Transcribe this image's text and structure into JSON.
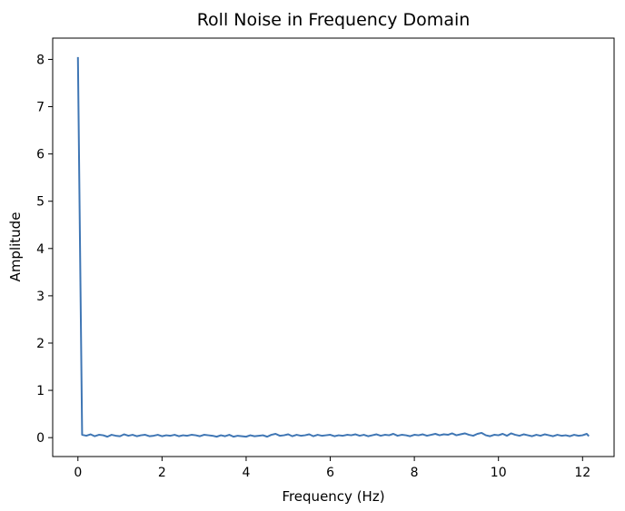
{
  "chart_data": {
    "type": "line",
    "title": "Roll Noise in Frequency Domain",
    "xlabel": "Frequency (Hz)",
    "ylabel": "Amplitude",
    "xlim": [
      -0.6,
      12.75
    ],
    "ylim": [
      -0.4,
      8.45
    ],
    "xticks": [
      0,
      2,
      4,
      6,
      8,
      10,
      12
    ],
    "yticks": [
      0,
      1,
      2,
      3,
      4,
      5,
      6,
      7,
      8
    ],
    "grid": false,
    "colors": {
      "line": "#3f76b4",
      "axes": "#000000"
    },
    "series": [
      {
        "x": [
          0,
          0.1,
          0.2,
          0.3,
          0.4,
          0.5,
          0.6,
          0.7,
          0.8,
          0.9,
          1.0,
          1.1,
          1.2,
          1.3,
          1.4,
          1.5,
          1.6,
          1.7,
          1.8,
          1.9,
          2.0,
          2.1,
          2.2,
          2.3,
          2.4,
          2.5,
          2.6,
          2.7,
          2.8,
          2.9,
          3.0,
          3.1,
          3.2,
          3.3,
          3.4,
          3.5,
          3.6,
          3.7,
          3.8,
          3.9,
          4.0,
          4.1,
          4.2,
          4.3,
          4.4,
          4.5,
          4.6,
          4.7,
          4.8,
          4.9,
          5.0,
          5.1,
          5.2,
          5.3,
          5.4,
          5.5,
          5.6,
          5.7,
          5.8,
          5.9,
          6.0,
          6.1,
          6.2,
          6.3,
          6.4,
          6.5,
          6.6,
          6.7,
          6.8,
          6.9,
          7.0,
          7.1,
          7.2,
          7.3,
          7.4,
          7.5,
          7.6,
          7.7,
          7.8,
          7.9,
          8.0,
          8.1,
          8.2,
          8.3,
          8.4,
          8.5,
          8.6,
          8.7,
          8.8,
          8.9,
          9.0,
          9.1,
          9.2,
          9.3,
          9.4,
          9.5,
          9.6,
          9.7,
          9.8,
          9.9,
          10.0,
          10.1,
          10.2,
          10.3,
          10.4,
          10.5,
          10.6,
          10.7,
          10.8,
          10.9,
          11.0,
          11.1,
          11.2,
          11.3,
          11.4,
          11.5,
          11.6,
          11.7,
          11.8,
          11.9,
          12.0,
          12.1,
          12.15
        ],
        "y": [
          8.05,
          0.06,
          0.04,
          0.07,
          0.03,
          0.06,
          0.05,
          0.02,
          0.06,
          0.04,
          0.03,
          0.07,
          0.04,
          0.06,
          0.03,
          0.05,
          0.06,
          0.03,
          0.04,
          0.06,
          0.03,
          0.05,
          0.04,
          0.06,
          0.03,
          0.05,
          0.04,
          0.06,
          0.05,
          0.03,
          0.06,
          0.05,
          0.04,
          0.02,
          0.05,
          0.03,
          0.06,
          0.02,
          0.04,
          0.03,
          0.02,
          0.05,
          0.03,
          0.04,
          0.05,
          0.02,
          0.06,
          0.08,
          0.04,
          0.05,
          0.07,
          0.03,
          0.06,
          0.04,
          0.05,
          0.07,
          0.03,
          0.06,
          0.04,
          0.05,
          0.06,
          0.03,
          0.05,
          0.04,
          0.06,
          0.05,
          0.07,
          0.04,
          0.06,
          0.03,
          0.05,
          0.07,
          0.04,
          0.06,
          0.05,
          0.08,
          0.04,
          0.06,
          0.05,
          0.03,
          0.06,
          0.05,
          0.07,
          0.04,
          0.06,
          0.08,
          0.05,
          0.07,
          0.06,
          0.09,
          0.05,
          0.07,
          0.09,
          0.06,
          0.04,
          0.08,
          0.1,
          0.05,
          0.03,
          0.06,
          0.05,
          0.08,
          0.04,
          0.09,
          0.06,
          0.04,
          0.07,
          0.05,
          0.03,
          0.06,
          0.04,
          0.07,
          0.05,
          0.03,
          0.06,
          0.04,
          0.05,
          0.03,
          0.06,
          0.04,
          0.05,
          0.08,
          0.03
        ]
      }
    ]
  }
}
